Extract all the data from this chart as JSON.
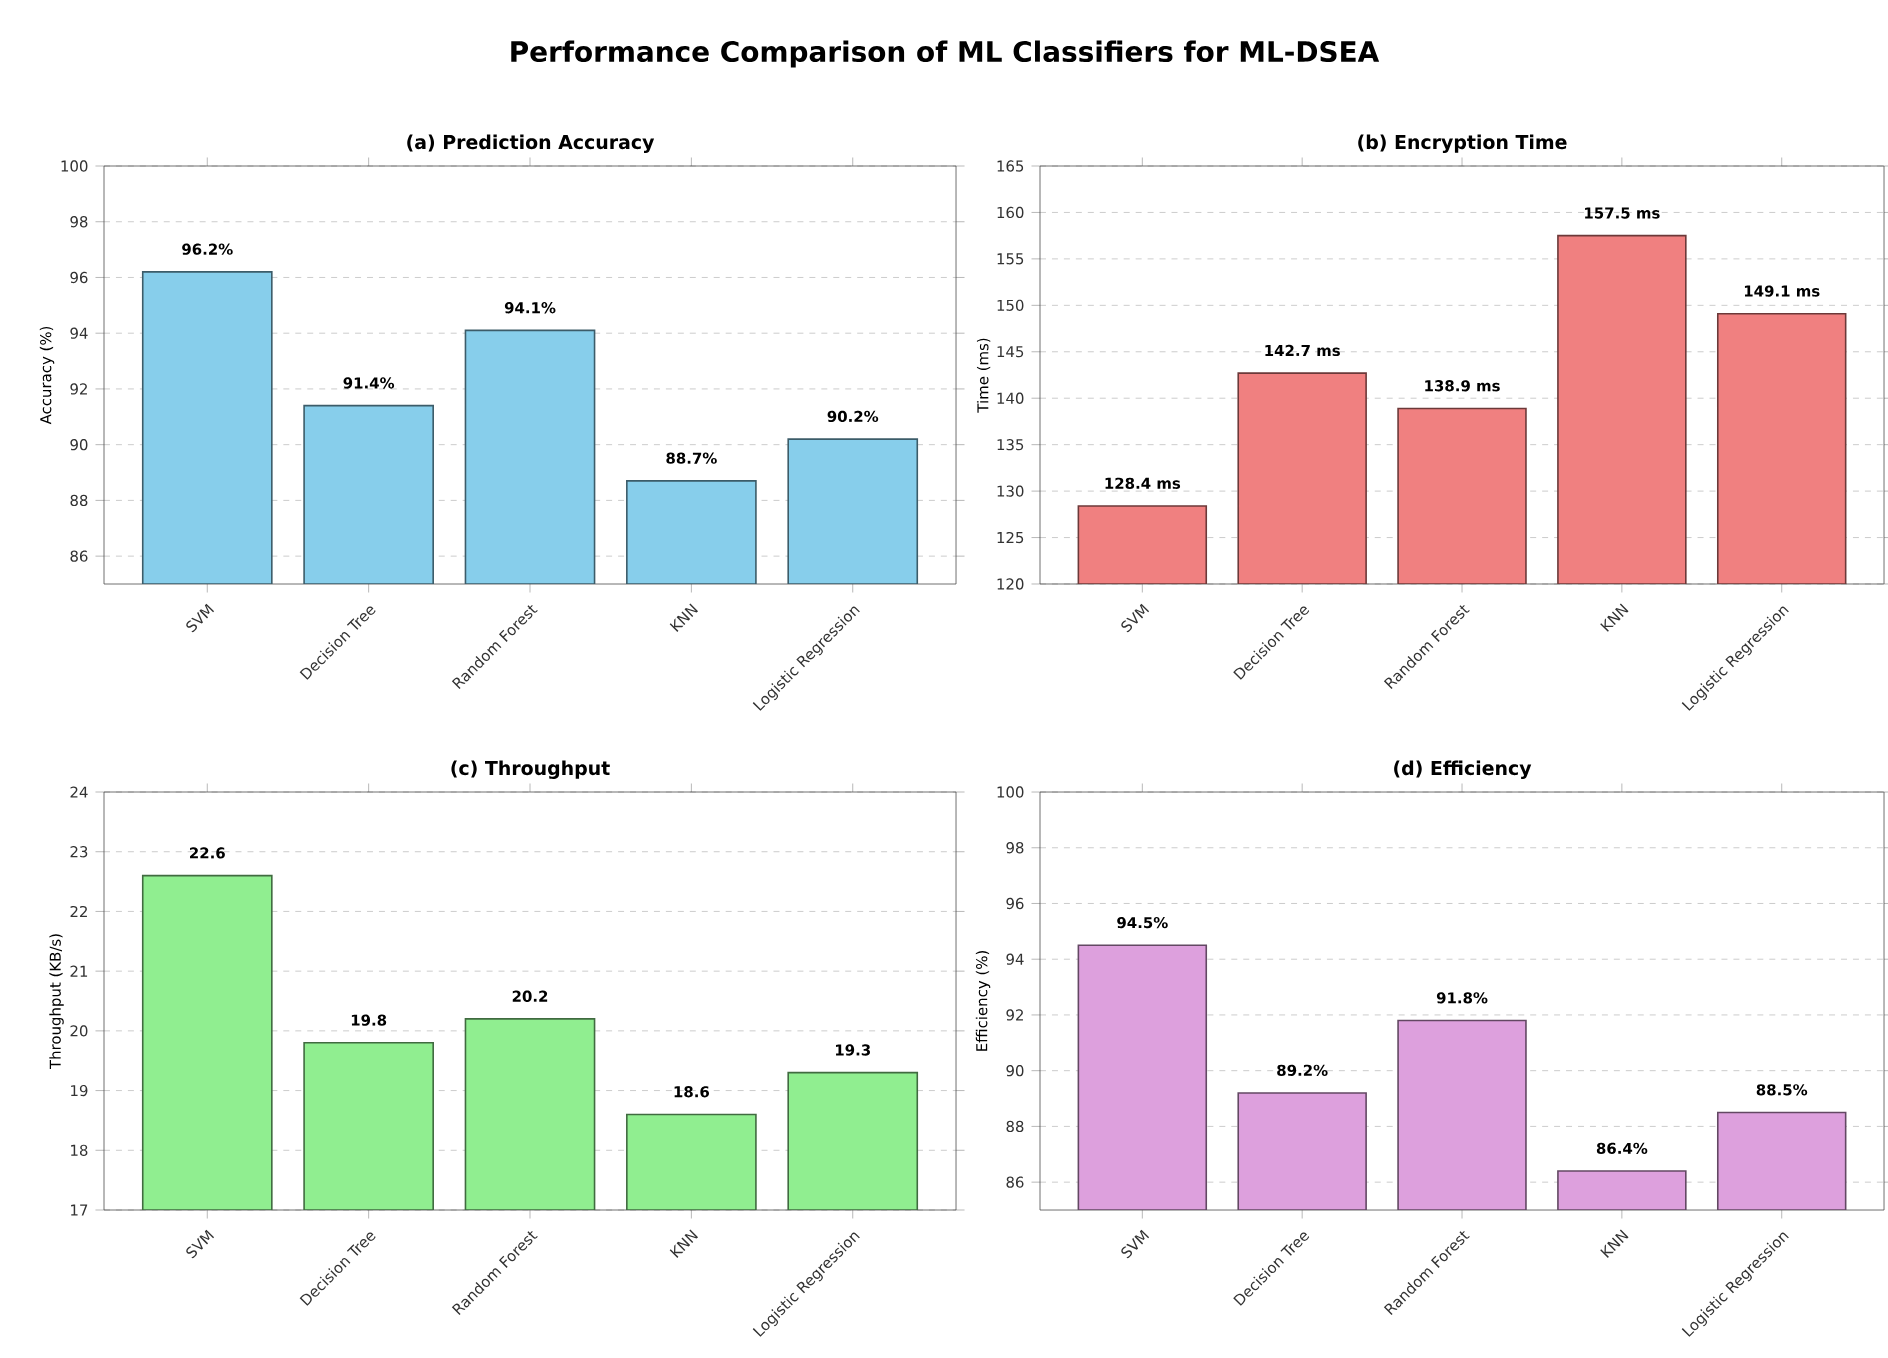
{
  "chart_data": [
    {
      "type": "other",
      "title": "Performance Comparison of ML Classifiers for ML-DSEA"
    },
    {
      "type": "bar",
      "title": "(a) Prediction Accuracy",
      "ylabel": "Accuracy (%)",
      "categories": [
        "SVM",
        "Decision Tree",
        "Random Forest",
        "KNN",
        "Logistic Regression"
      ],
      "values": [
        96.2,
        91.4,
        94.1,
        88.7,
        90.2
      ],
      "value_labels": [
        "96.2%",
        "91.4%",
        "94.1%",
        "88.7%",
        "90.2%"
      ],
      "color": "#87ceeb",
      "ylim": [
        85,
        100
      ],
      "yticks": [
        86,
        88,
        90,
        92,
        94,
        96,
        98,
        100
      ],
      "grid": "y"
    },
    {
      "type": "bar",
      "title": "(b) Encryption Time",
      "ylabel": "Time (ms)",
      "categories": [
        "SVM",
        "Decision Tree",
        "Random Forest",
        "KNN",
        "Logistic Regression"
      ],
      "values": [
        128.4,
        142.7,
        138.9,
        157.5,
        149.1
      ],
      "value_labels": [
        "128.4 ms",
        "142.7 ms",
        "138.9 ms",
        "157.5 ms",
        "149.1 ms"
      ],
      "color": "#f08080",
      "ylim": [
        120,
        165
      ],
      "yticks": [
        120,
        125,
        130,
        135,
        140,
        145,
        150,
        155,
        160,
        165
      ],
      "grid": "y"
    },
    {
      "type": "bar",
      "title": "(c) Throughput",
      "ylabel": "Throughput (KB/s)",
      "categories": [
        "SVM",
        "Decision Tree",
        "Random Forest",
        "KNN",
        "Logistic Regression"
      ],
      "values": [
        22.6,
        19.8,
        20.2,
        18.6,
        19.3
      ],
      "data_labels": true,
      "color": "#90ee90",
      "ylim": [
        17,
        24
      ],
      "yticks": [
        17,
        18,
        19,
        20,
        21,
        22,
        23,
        24
      ],
      "grid": "y"
    },
    {
      "type": "bar",
      "title": "(d) Efficiency",
      "ylabel": "Efficiency (%)",
      "categories": [
        "SVM",
        "Decision Tree",
        "Random Forest",
        "KNN",
        "Logistic Regression"
      ],
      "values": [
        94.5,
        89.2,
        91.8,
        86.4,
        88.5
      ],
      "value_labels": [
        "94.5%",
        "89.2%",
        "91.8%",
        "86.4%",
        "88.5%"
      ],
      "color": "#dda0dd",
      "ylim": [
        85,
        100
      ],
      "yticks": [
        86,
        88,
        90,
        92,
        94,
        96,
        98,
        100
      ],
      "grid": "y"
    }
  ]
}
